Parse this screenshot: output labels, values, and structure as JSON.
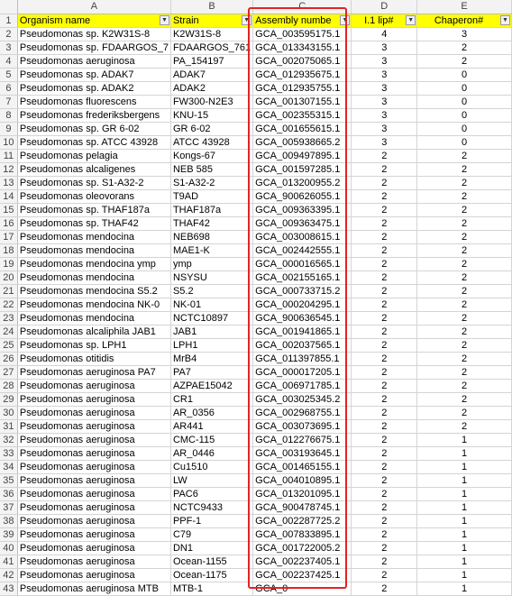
{
  "columns": [
    "A",
    "B",
    "C",
    "D",
    "E"
  ],
  "headers": [
    "Organism name",
    "Strain",
    "Assembly numbe",
    "I.1 lip#",
    "Chaperon#"
  ],
  "rows": [
    {
      "n": "2",
      "org": "Pseudomonas sp. K2W31S-8",
      "strain": "K2W31S-8",
      "asm": "GCA_003595175.1",
      "lip": "4",
      "chap": "3"
    },
    {
      "n": "3",
      "org": "Pseudomonas sp. FDAARGOS_7",
      "strain": "FDAARGOS_761",
      "asm": "GCA_013343155.1",
      "lip": "3",
      "chap": "2"
    },
    {
      "n": "4",
      "org": "Pseudomonas aeruginosa",
      "strain": "PA_154197",
      "asm": "GCA_002075065.1",
      "lip": "3",
      "chap": "2"
    },
    {
      "n": "5",
      "org": "Pseudomonas sp. ADAK7",
      "strain": "ADAK7",
      "asm": "GCA_012935675.1",
      "lip": "3",
      "chap": "0"
    },
    {
      "n": "6",
      "org": "Pseudomonas sp. ADAK2",
      "strain": "ADAK2",
      "asm": "GCA_012935755.1",
      "lip": "3",
      "chap": "0"
    },
    {
      "n": "7",
      "org": "Pseudomonas fluorescens",
      "strain": "FW300-N2E3",
      "asm": "GCA_001307155.1",
      "lip": "3",
      "chap": "0"
    },
    {
      "n": "8",
      "org": "Pseudomonas frederiksbergens",
      "strain": "KNU-15",
      "asm": "GCA_002355315.1",
      "lip": "3",
      "chap": "0"
    },
    {
      "n": "9",
      "org": "Pseudomonas sp. GR 6-02",
      "strain": "GR 6-02",
      "asm": "GCA_001655615.1",
      "lip": "3",
      "chap": "0"
    },
    {
      "n": "10",
      "org": "Pseudomonas sp. ATCC 43928",
      "strain": "ATCC 43928",
      "asm": "GCA_005938665.2",
      "lip": "3",
      "chap": "0"
    },
    {
      "n": "11",
      "org": "Pseudomonas pelagia",
      "strain": "Kongs-67",
      "asm": "GCA_009497895.1",
      "lip": "2",
      "chap": "2"
    },
    {
      "n": "12",
      "org": "Pseudomonas alcaligenes",
      "strain": "NEB 585",
      "asm": "GCA_001597285.1",
      "lip": "2",
      "chap": "2"
    },
    {
      "n": "13",
      "org": "Pseudomonas sp. S1-A32-2",
      "strain": "S1-A32-2",
      "asm": "GCA_013200955.2",
      "lip": "2",
      "chap": "2"
    },
    {
      "n": "14",
      "org": "Pseudomonas oleovorans",
      "strain": "T9AD",
      "asm": "GCA_900626055.1",
      "lip": "2",
      "chap": "2"
    },
    {
      "n": "15",
      "org": "Pseudomonas sp. THAF187a",
      "strain": "THAF187a",
      "asm": "GCA_009363395.1",
      "lip": "2",
      "chap": "2"
    },
    {
      "n": "16",
      "org": "Pseudomonas sp. THAF42",
      "strain": "THAF42",
      "asm": "GCA_009363475.1",
      "lip": "2",
      "chap": "2"
    },
    {
      "n": "17",
      "org": "Pseudomonas mendocina",
      "strain": "NEB698",
      "asm": "GCA_003008615.1",
      "lip": "2",
      "chap": "2"
    },
    {
      "n": "18",
      "org": "Pseudomonas mendocina",
      "strain": "MAE1-K",
      "asm": "GCA_002442555.1",
      "lip": "2",
      "chap": "2"
    },
    {
      "n": "19",
      "org": "Pseudomonas mendocina ymp",
      "strain": "ymp",
      "asm": "GCA_000016565.1",
      "lip": "2",
      "chap": "2"
    },
    {
      "n": "20",
      "org": "Pseudomonas mendocina",
      "strain": "NSYSU",
      "asm": "GCA_002155165.1",
      "lip": "2",
      "chap": "2"
    },
    {
      "n": "21",
      "org": "Pseudomonas mendocina S5.2",
      "strain": "S5.2",
      "asm": "GCA_000733715.2",
      "lip": "2",
      "chap": "2"
    },
    {
      "n": "22",
      "org": "Pseudomonas mendocina NK-0",
      "strain": "NK-01",
      "asm": "GCA_000204295.1",
      "lip": "2",
      "chap": "2"
    },
    {
      "n": "23",
      "org": "Pseudomonas mendocina",
      "strain": "NCTC10897",
      "asm": "GCA_900636545.1",
      "lip": "2",
      "chap": "2"
    },
    {
      "n": "24",
      "org": "Pseudomonas alcaliphila JAB1",
      "strain": "JAB1",
      "asm": "GCA_001941865.1",
      "lip": "2",
      "chap": "2"
    },
    {
      "n": "25",
      "org": "Pseudomonas sp. LPH1",
      "strain": "LPH1",
      "asm": "GCA_002037565.1",
      "lip": "2",
      "chap": "2"
    },
    {
      "n": "26",
      "org": "Pseudomonas otitidis",
      "strain": "MrB4",
      "asm": "GCA_011397855.1",
      "lip": "2",
      "chap": "2"
    },
    {
      "n": "27",
      "org": "Pseudomonas aeruginosa PA7",
      "strain": "PA7",
      "asm": "GCA_000017205.1",
      "lip": "2",
      "chap": "2"
    },
    {
      "n": "28",
      "org": "Pseudomonas aeruginosa",
      "strain": "AZPAE15042",
      "asm": "GCA_006971785.1",
      "lip": "2",
      "chap": "2"
    },
    {
      "n": "29",
      "org": "Pseudomonas aeruginosa",
      "strain": "CR1",
      "asm": "GCA_003025345.2",
      "lip": "2",
      "chap": "2"
    },
    {
      "n": "30",
      "org": "Pseudomonas aeruginosa",
      "strain": "AR_0356",
      "asm": "GCA_002968755.1",
      "lip": "2",
      "chap": "2"
    },
    {
      "n": "31",
      "org": "Pseudomonas aeruginosa",
      "strain": "AR441",
      "asm": "GCA_003073695.1",
      "lip": "2",
      "chap": "2"
    },
    {
      "n": "32",
      "org": "Pseudomonas aeruginosa",
      "strain": "CMC-115",
      "asm": "GCA_012276675.1",
      "lip": "2",
      "chap": "1"
    },
    {
      "n": "33",
      "org": "Pseudomonas aeruginosa",
      "strain": "AR_0446",
      "asm": "GCA_003193645.1",
      "lip": "2",
      "chap": "1"
    },
    {
      "n": "34",
      "org": "Pseudomonas aeruginosa",
      "strain": "Cu1510",
      "asm": "GCA_001465155.1",
      "lip": "2",
      "chap": "1"
    },
    {
      "n": "35",
      "org": "Pseudomonas aeruginosa",
      "strain": "LW",
      "asm": "GCA_004010895.1",
      "lip": "2",
      "chap": "1"
    },
    {
      "n": "36",
      "org": "Pseudomonas aeruginosa",
      "strain": "PAC6",
      "asm": "GCA_013201095.1",
      "lip": "2",
      "chap": "1"
    },
    {
      "n": "37",
      "org": "Pseudomonas aeruginosa",
      "strain": "NCTC9433",
      "asm": "GCA_900478745.1",
      "lip": "2",
      "chap": "1"
    },
    {
      "n": "38",
      "org": "Pseudomonas aeruginosa",
      "strain": "PPF-1",
      "asm": "GCA_002287725.2",
      "lip": "2",
      "chap": "1"
    },
    {
      "n": "39",
      "org": "Pseudomonas aeruginosa",
      "strain": "C79",
      "asm": "GCA_007833895.1",
      "lip": "2",
      "chap": "1"
    },
    {
      "n": "40",
      "org": "Pseudomonas aeruginosa",
      "strain": "DN1",
      "asm": "GCA_001722005.2",
      "lip": "2",
      "chap": "1"
    },
    {
      "n": "41",
      "org": "Pseudomonas aeruginosa",
      "strain": "Ocean-1155",
      "asm": "GCA_002237405.1",
      "lip": "2",
      "chap": "1"
    },
    {
      "n": "42",
      "org": "Pseudomonas aeruginosa",
      "strain": "Ocean-1175",
      "asm": "GCA_002237425.1",
      "lip": "2",
      "chap": "1"
    },
    {
      "n": "43",
      "org": "Pseudomonas aeruginosa MTB",
      "strain": "MTB-1",
      "asm": "GCA_0",
      "lip": "2",
      "chap": "1"
    }
  ],
  "colors": {
    "header_fill": "#ffff00",
    "selection_border": "#e52222",
    "grid": "#d4d4d4"
  }
}
